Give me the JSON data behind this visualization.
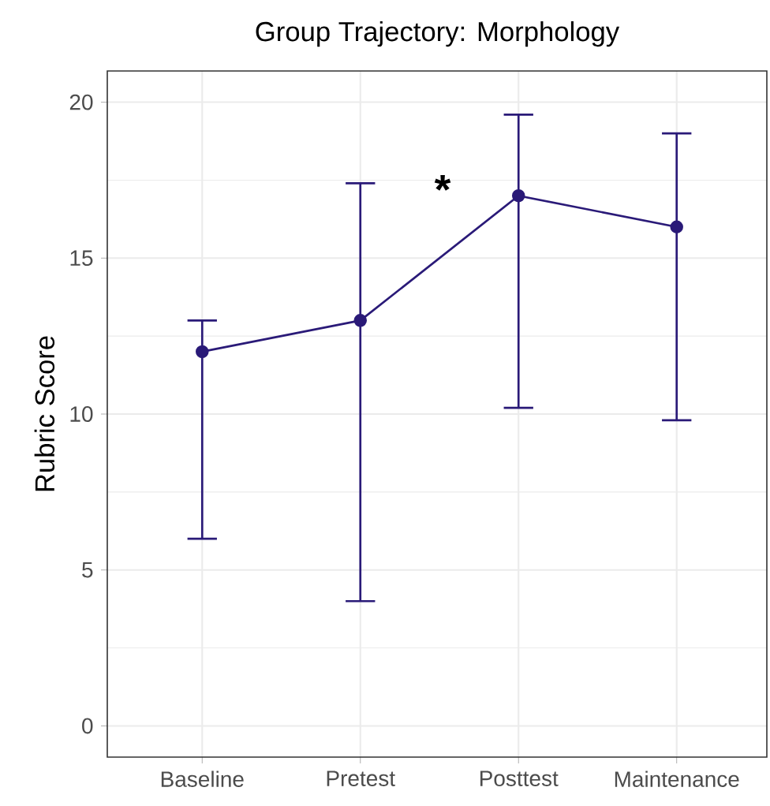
{
  "chart_data": {
    "type": "line",
    "title": "Group Trajectory: Morphology",
    "ylabel": "Rubric Score",
    "categories": [
      "Baseline",
      "Pretest",
      "Posttest",
      "Maintenance"
    ],
    "series": [
      {
        "color": "#2a1a78",
        "values": [
          12,
          13,
          17,
          16
        ],
        "errors": [
          [
            6,
            13
          ],
          [
            4,
            17.4
          ],
          [
            10.2,
            19.6
          ],
          [
            9.8,
            19
          ]
        ]
      }
    ],
    "ylim": [
      -1,
      21
    ],
    "yticks": [
      0,
      5,
      10,
      15,
      20
    ],
    "grid": true,
    "marker": "circle",
    "line_style": "solid",
    "annotations": [
      "*"
    ]
  }
}
